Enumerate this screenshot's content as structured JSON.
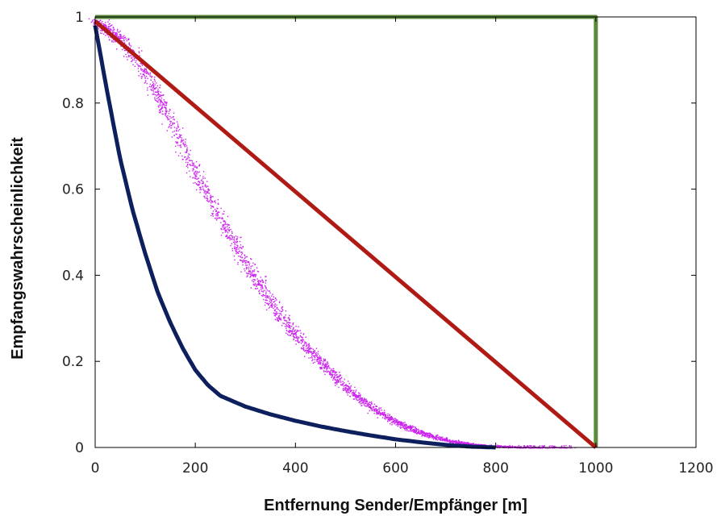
{
  "chart_data": {
    "type": "line",
    "title": "",
    "xlabel": "Entfernung Sender/Empfänger [m]",
    "ylabel": "Empfangswahrscheinlichkeit",
    "xlim": [
      0,
      1200
    ],
    "ylim": [
      0,
      1
    ],
    "grid": false,
    "legend": "none",
    "x_ticks": [
      "0",
      "200",
      "400",
      "600",
      "800",
      "1000",
      "1200"
    ],
    "x_tick_values": [
      0,
      200,
      400,
      600,
      800,
      1000,
      1200
    ],
    "y_ticks": [
      "0",
      "0.2",
      "0.4",
      "0.6",
      "0.8",
      "1"
    ],
    "y_tick_values": [
      0,
      0.2,
      0.4,
      0.6,
      0.8,
      1
    ],
    "series": [
      {
        "kind": "line",
        "color": "#5b8a3c",
        "x": [
          0,
          1000,
          1000
        ],
        "y": [
          1,
          1,
          0
        ]
      },
      {
        "kind": "line",
        "color": "#b01a14",
        "x": [
          0,
          1000
        ],
        "y": [
          0.99,
          0
        ]
      },
      {
        "kind": "line",
        "color": "#0d1f5c",
        "x": [
          0,
          25,
          50,
          75,
          100,
          125,
          150,
          175,
          200,
          225,
          250,
          300,
          350,
          400,
          450,
          500,
          550,
          600,
          650,
          700,
          750,
          800
        ],
        "y": [
          0.98,
          0.82,
          0.67,
          0.55,
          0.45,
          0.36,
          0.29,
          0.23,
          0.18,
          0.145,
          0.12,
          0.095,
          0.077,
          0.062,
          0.049,
          0.038,
          0.028,
          0.019,
          0.012,
          0.006,
          0.002,
          0.0
        ]
      },
      {
        "kind": "scatter-band",
        "color": "#cc22ee",
        "x": [
          0,
          50,
          100,
          150,
          200,
          250,
          300,
          350,
          400,
          450,
          500,
          550,
          600,
          650,
          700,
          750,
          800,
          850,
          900,
          950
        ],
        "y": [
          0.99,
          0.95,
          0.87,
          0.76,
          0.64,
          0.53,
          0.43,
          0.34,
          0.26,
          0.2,
          0.14,
          0.095,
          0.06,
          0.035,
          0.018,
          0.008,
          0.003,
          0.001,
          0.0,
          0.0
        ]
      }
    ]
  }
}
